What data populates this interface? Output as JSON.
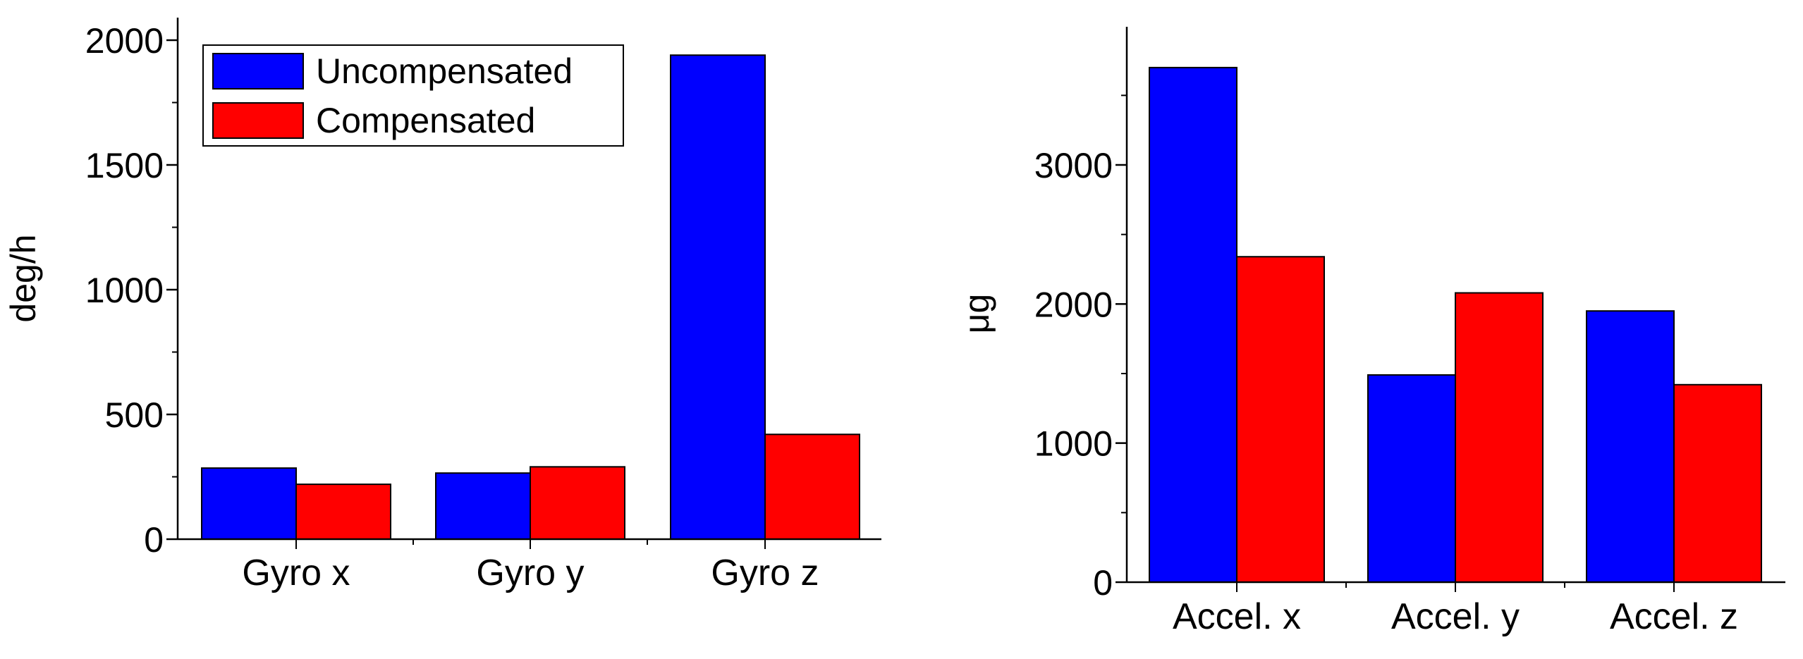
{
  "chart_data": [
    {
      "type": "bar",
      "categories": [
        "Gyro x",
        "Gyro y",
        "Gyro z"
      ],
      "series": [
        {
          "name": "Uncompensated",
          "color": "#0000FF",
          "values": [
            285,
            265,
            1940
          ]
        },
        {
          "name": "Compensated",
          "color": "#FF0000",
          "values": [
            220,
            290,
            420
          ]
        }
      ],
      "ylabel": "deg/h",
      "ylim": [
        0,
        2000
      ],
      "yticks": [
        0,
        500,
        1000,
        1500,
        2000
      ],
      "grid": false,
      "legend_position": "top-left"
    },
    {
      "type": "bar",
      "categories": [
        "Accel. x",
        "Accel. y",
        "Accel. z"
      ],
      "series": [
        {
          "name": "Uncompensated",
          "color": "#0000FF",
          "values": [
            3700,
            1490,
            1950
          ]
        },
        {
          "name": "Compensated",
          "color": "#FF0000",
          "values": [
            2340,
            2080,
            1420
          ]
        }
      ],
      "ylabel": "μg",
      "ylim": [
        0,
        4000
      ],
      "yticks": [
        0,
        1000,
        2000,
        3000
      ],
      "grid": false,
      "legend_position": "none"
    }
  ]
}
